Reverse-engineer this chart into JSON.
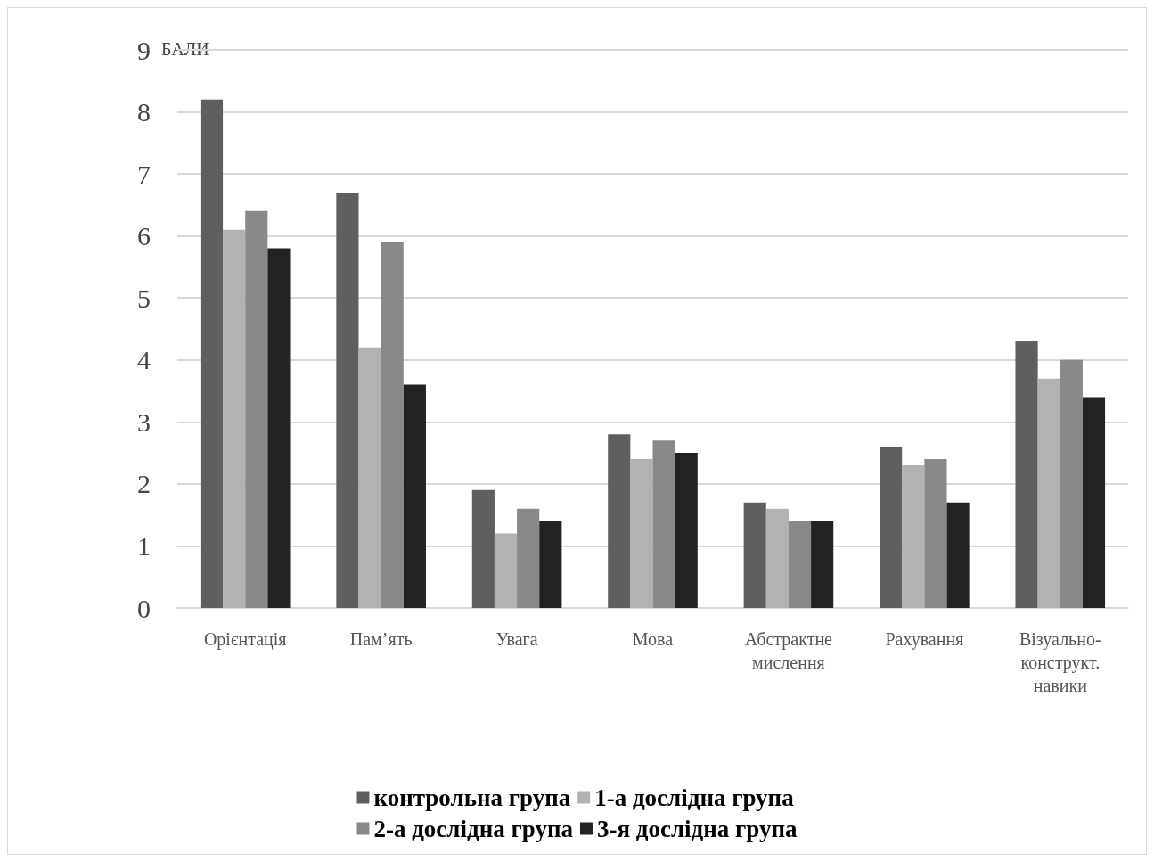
{
  "chart_data": {
    "type": "bar",
    "ylabel": "БАЛИ",
    "categories": [
      "Орієнтація",
      "Пам’ять",
      "Увага",
      "Мова",
      "Абстрактне\nмислення",
      "Рахування",
      "Візуально-\nконструкт.\nнавики"
    ],
    "series": [
      {
        "name": "контрольна група",
        "color": "#5f5f5f",
        "values": [
          8.2,
          6.7,
          1.9,
          2.8,
          1.7,
          2.6,
          4.3
        ]
      },
      {
        "name": "1-а дослідна група",
        "color": "#b2b2b2",
        "values": [
          6.1,
          4.2,
          1.2,
          2.4,
          1.6,
          2.3,
          3.7
        ]
      },
      {
        "name": "2-а дослідна група",
        "color": "#898989",
        "values": [
          6.4,
          5.9,
          1.6,
          2.7,
          1.4,
          2.4,
          4.0
        ]
      },
      {
        "name": "3-я дослідна група",
        "color": "#222222",
        "values": [
          5.8,
          3.6,
          1.4,
          2.5,
          1.4,
          1.7,
          3.4
        ]
      }
    ],
    "ylim": [
      0,
      9
    ],
    "yticks": [
      0,
      1,
      2,
      3,
      4,
      5,
      6,
      7,
      8,
      9
    ],
    "grid": "y",
    "legend": "bottom"
  }
}
